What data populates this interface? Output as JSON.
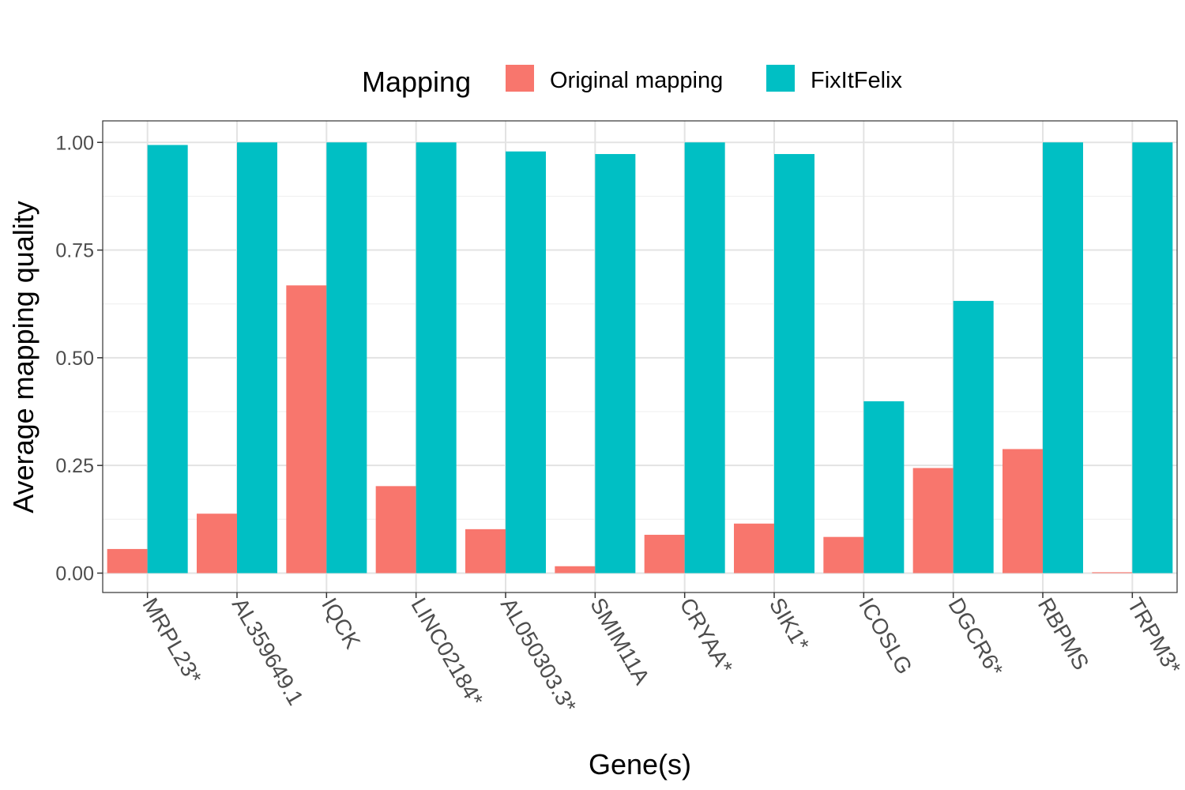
{
  "chart_data": {
    "type": "bar",
    "title": "",
    "xlabel": "Gene(s)",
    "ylabel": "Average mapping quality",
    "ylim": [
      -0.045,
      1.05
    ],
    "yticks": [
      0.0,
      0.25,
      0.5,
      0.75,
      1.0
    ],
    "ytick_labels": [
      "0.00",
      "0.25",
      "0.50",
      "0.75",
      "1.00"
    ],
    "grid": true,
    "legend": {
      "title": "Mapping",
      "placement": "top"
    },
    "categories": [
      "MRPL23*",
      "AL359649.1",
      "IQCK",
      "LINC02184*",
      "AL050303.3*",
      "SMIM11A",
      "CRYAA*",
      "SIK1*",
      "ICOSLG",
      "DGCR6*",
      "RBPMS",
      "TRPM3*"
    ],
    "series": [
      {
        "name": "Original mapping",
        "color": "#F8766D",
        "values": [
          0.056,
          0.138,
          0.668,
          0.202,
          0.102,
          0.016,
          0.089,
          0.115,
          0.084,
          0.244,
          0.288,
          0.002
        ]
      },
      {
        "name": "FixItFelix",
        "color": "#00BFC4",
        "values": [
          0.994,
          1.0,
          1.0,
          1.0,
          0.979,
          0.973,
          1.0,
          0.973,
          0.399,
          0.632,
          1.0,
          1.0
        ]
      }
    ]
  }
}
